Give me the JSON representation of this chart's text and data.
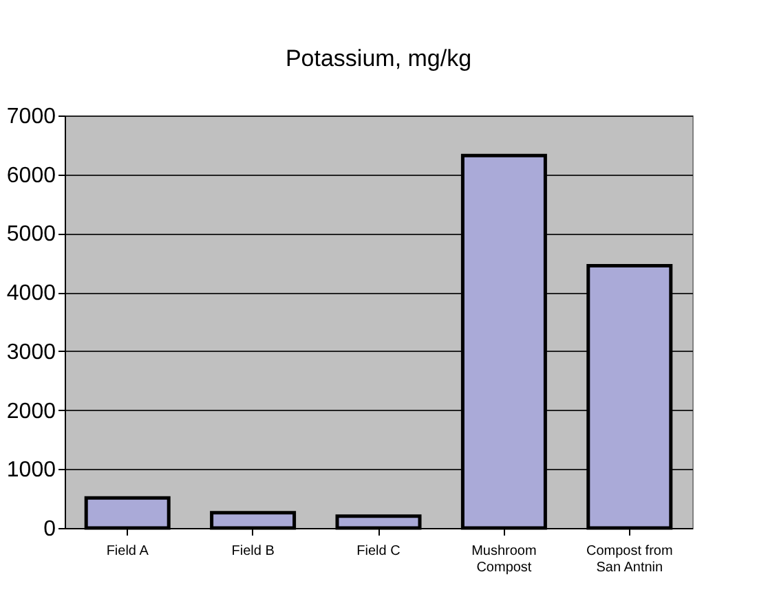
{
  "chart_data": {
    "type": "bar",
    "title": "Potassium, mg/kg",
    "categories": [
      "Field A",
      "Field B",
      "Field C",
      "Mushroom Compost",
      "Compost from San Antnin"
    ],
    "values": [
      510,
      260,
      200,
      6320,
      4450
    ],
    "color": "#aaaad8",
    "ylim": [
      0,
      7000
    ],
    "yticks": [
      0,
      1000,
      2000,
      3000,
      4000,
      5000,
      6000,
      7000
    ],
    "grid": "y"
  }
}
